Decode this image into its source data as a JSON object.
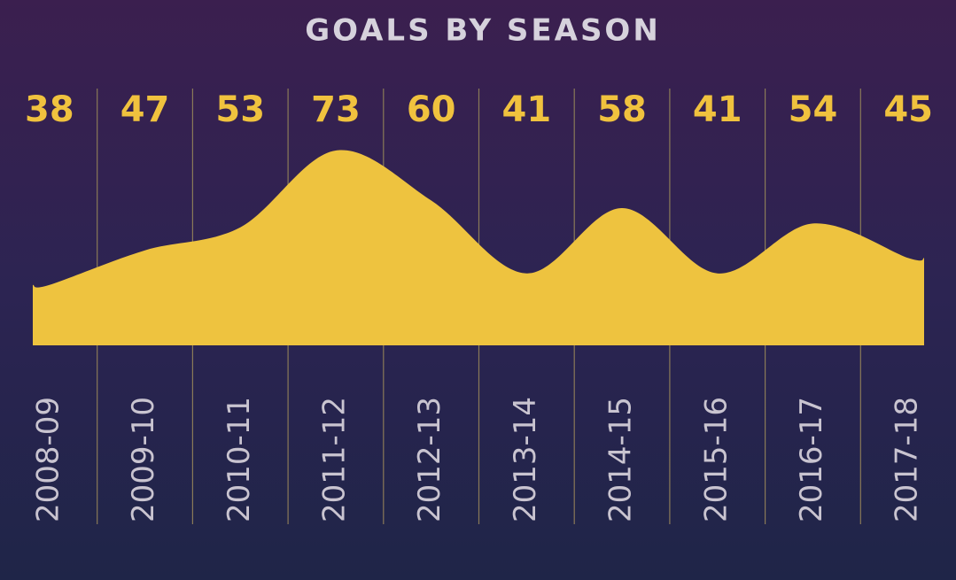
{
  "chart_data": {
    "type": "area",
    "title": "GOALS BY SEASON",
    "categories": [
      "2008-09",
      "2009-10",
      "2010-11",
      "2011-12",
      "2012-13",
      "2013-14",
      "2014-15",
      "2015-16",
      "2016-17",
      "2017-18"
    ],
    "values": [
      38,
      47,
      53,
      73,
      60,
      41,
      58,
      41,
      54,
      45
    ],
    "color": "#eec33f"
  }
}
